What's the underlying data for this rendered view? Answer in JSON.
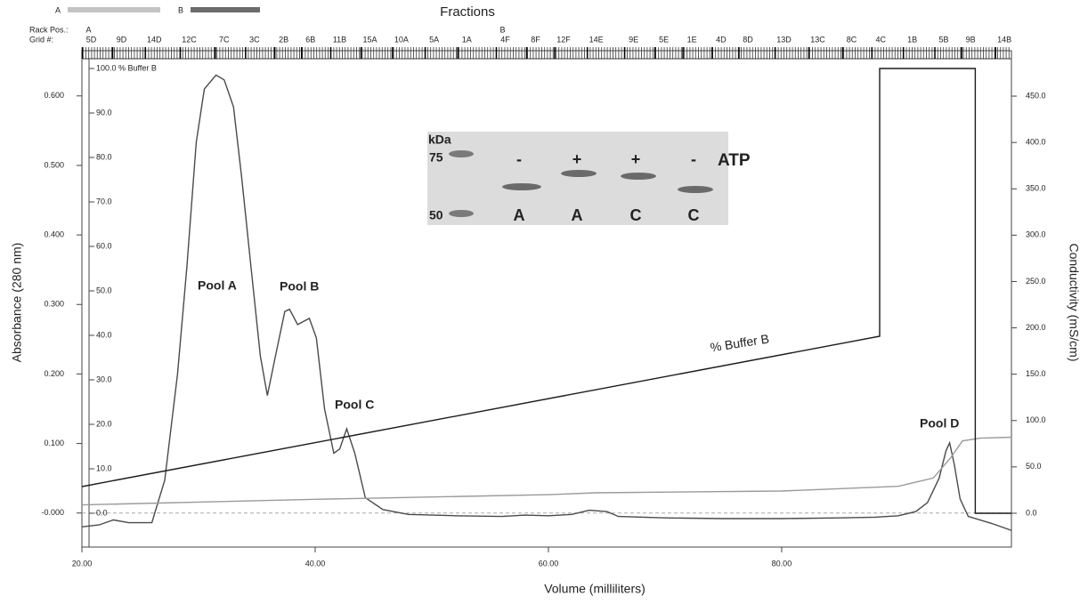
{
  "chart_data": {
    "type": "line",
    "title": "Fractions",
    "x_label": "Volume (milliliters)",
    "y_label": "Absorbance (280 nm)",
    "y2_label": "Conductivity (mS/cm)",
    "xlim": [
      20,
      99.7
    ],
    "xticks": [
      {
        "value": 20,
        "label": "20.00"
      },
      {
        "value": 40,
        "label": "40.00"
      },
      {
        "value": 60,
        "label": "60.00"
      },
      {
        "value": 80,
        "label": "80.00"
      }
    ],
    "ylim": [
      -0.049,
      0.665
    ],
    "yticks": [
      {
        "value": 0,
        "label": "-0.000"
      },
      {
        "value": 0.1,
        "label": "0.100"
      },
      {
        "value": 0.2,
        "label": "0.200"
      },
      {
        "value": 0.3,
        "label": "0.300"
      },
      {
        "value": 0.4,
        "label": "0.400"
      },
      {
        "value": 0.5,
        "label": "0.500"
      },
      {
        "value": 0.6,
        "label": "0.600"
      }
    ],
    "y2lim": [
      -36.5,
      499
    ],
    "y2ticks": [
      {
        "value": 0,
        "label": "0.0"
      },
      {
        "value": 50,
        "label": "50.0"
      },
      {
        "value": 100,
        "label": "100.0"
      },
      {
        "value": 150,
        "label": "150.0"
      },
      {
        "value": 200,
        "label": "200.0"
      },
      {
        "value": 250,
        "label": "250.0"
      },
      {
        "value": 300,
        "label": "300.0"
      },
      {
        "value": 350,
        "label": "350.0"
      },
      {
        "value": 400,
        "label": "400.0"
      },
      {
        "value": 450,
        "label": "450.0"
      }
    ],
    "y3lim": [
      -7.6,
      104
    ],
    "y3ticks": [
      {
        "value": 0,
        "label": "0.0"
      },
      {
        "value": 10,
        "label": "10.0"
      },
      {
        "value": 20,
        "label": "20.0"
      },
      {
        "value": 30,
        "label": "30.0"
      },
      {
        "value": 40,
        "label": "40.0"
      },
      {
        "value": 50,
        "label": "50.0"
      },
      {
        "value": 60,
        "label": "60.0"
      },
      {
        "value": 70,
        "label": "70.0"
      },
      {
        "value": 80,
        "label": "80.0"
      },
      {
        "value": 90,
        "label": "90.0"
      },
      {
        "value": 100,
        "label": "100.0 % Buffer B"
      }
    ],
    "series": [
      {
        "color": "#4a4a4a",
        "axis": "y",
        "x": [
          20,
          21.5,
          22.7,
          24,
          26,
          26.3,
          27.1,
          28.2,
          29,
          29.8,
          30.5,
          31.5,
          32.2,
          33,
          33.7,
          34.5,
          35.3,
          35.9,
          36.6,
          37.4,
          37.8,
          38.5,
          39.5,
          40.1,
          40.8,
          41.6,
          42.1,
          42.7,
          43.4,
          44.3,
          45.8,
          48,
          52,
          56,
          58,
          60,
          62,
          63.5,
          65,
          66,
          70,
          75,
          80,
          85,
          88,
          90,
          91.5,
          92.5,
          93.5,
          94.1,
          94.4,
          94.8,
          95.3,
          96,
          98,
          99.7
        ],
        "values": [
          -0.02,
          -0.017,
          -0.01,
          -0.014,
          -0.014,
          0.003,
          0.047,
          0.2,
          0.354,
          0.533,
          0.61,
          0.63,
          0.623,
          0.584,
          0.482,
          0.354,
          0.226,
          0.169,
          0.226,
          0.29,
          0.293,
          0.271,
          0.28,
          0.252,
          0.15,
          0.086,
          0.092,
          0.121,
          0.086,
          0.022,
          0.005,
          -0.002,
          -0.004,
          -0.005,
          -0.003,
          -0.004,
          -0.002,
          0.004,
          0.002,
          -0.005,
          -0.007,
          -0.008,
          -0.008,
          -0.007,
          -0.006,
          -0.004,
          0.002,
          0.015,
          0.05,
          0.09,
          0.101,
          0.07,
          0.02,
          -0.005,
          -0.015,
          -0.025
        ]
      },
      {
        "color": "#9a9a9a",
        "axis": "y2",
        "x": [
          20,
          40,
          60,
          64,
          80,
          90,
          93,
          94.5,
          95.5,
          97,
          99.7
        ],
        "values": [
          9,
          15,
          20,
          22,
          24,
          29,
          38,
          60,
          78,
          81,
          82
        ]
      },
      {
        "color": "#1a1a1a",
        "axis": "y3",
        "x": [
          20,
          88.4,
          88.4,
          96.6,
          96.6,
          99.7
        ],
        "values": [
          6,
          39.8,
          100,
          100,
          0,
          0
        ]
      }
    ],
    "annotations": [
      "Pool A",
      "Pool B",
      "Pool C",
      "Pool D",
      "% Buffer B"
    ],
    "pump_legend": [
      {
        "label": "A",
        "color": "#c4c4c4"
      },
      {
        "label": "B",
        "color": "#6c6c6c"
      }
    ],
    "fraction_axis": {
      "rack_label": "Rack Pos.:",
      "grid_label": "Grid #:",
      "racks": [
        {
          "label": "A",
          "x": 20.8
        },
        {
          "label": "B",
          "x": 56.3
        }
      ],
      "x": [
        20.8,
        23.4,
        26.2,
        29.2,
        32.2,
        34.8,
        37.3,
        39.6,
        42.1,
        44.7,
        47.4,
        50.2,
        53.0,
        56.3,
        58.9,
        61.3,
        64.1,
        67.3,
        69.9,
        72.3,
        74.8,
        77.1,
        80.2,
        83.1,
        86.0,
        88.5,
        91.2,
        93.9,
        96.2,
        99.1
      ],
      "labels": [
        "5D",
        "9D",
        "14D",
        "12C",
        "7C",
        "3C",
        "2B",
        "6B",
        "11B",
        "15A",
        "10A",
        "5A",
        "1A",
        "4F",
        "8F",
        "12F",
        "14E",
        "9E",
        "5E",
        "1E",
        "4D",
        "8D",
        "13D",
        "13C",
        "8C",
        "4C",
        "1B",
        "5B",
        "9B",
        "14B"
      ]
    },
    "inset": {
      "units": "kDa",
      "markers": [
        75,
        50
      ],
      "treatment": "ATP",
      "signs": [
        "-",
        "+",
        "+",
        "-"
      ],
      "lanes": [
        "A",
        "A",
        "C",
        "C"
      ]
    }
  }
}
